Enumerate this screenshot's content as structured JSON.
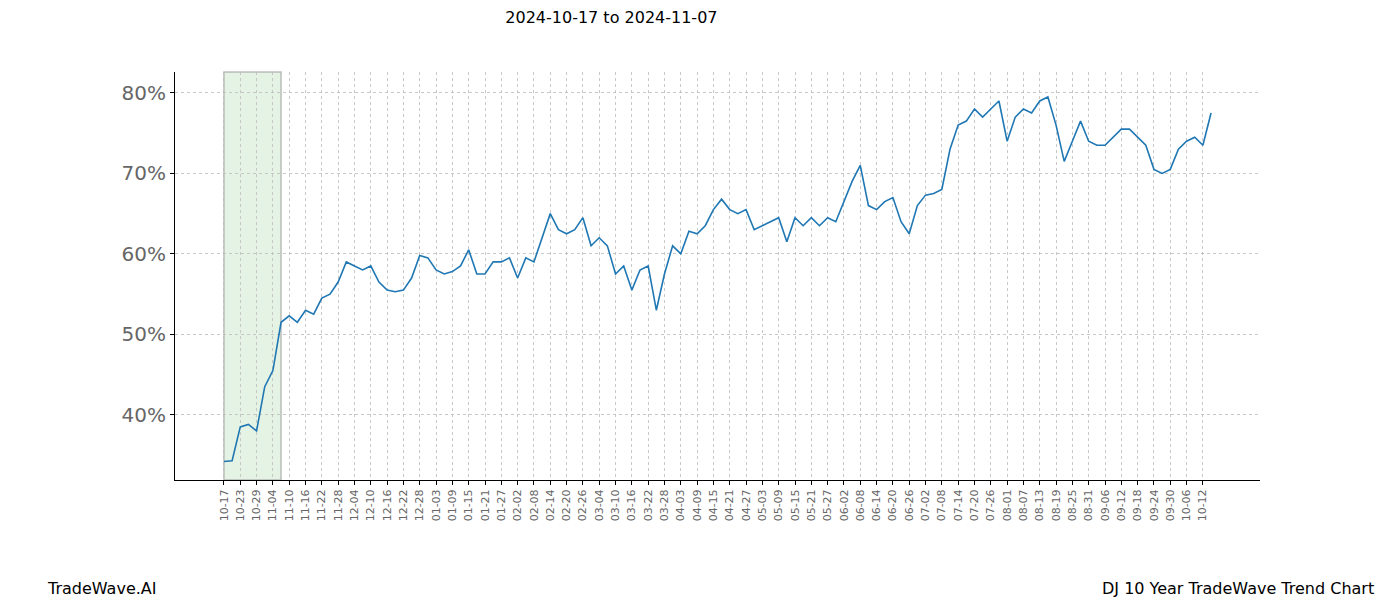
{
  "chart_data": {
    "type": "line",
    "title": "2024-10-17 to 2024-11-07",
    "footer_left": "TradeWave.AI",
    "footer_right": "DJ 10 Year TradeWave Trend Chart",
    "color": "#1f77b4",
    "grid": true,
    "highlight_range": [
      0,
      7
    ],
    "categories": [
      "10-17",
      null,
      "10-23",
      null,
      "10-29",
      null,
      "11-04",
      null,
      "11-10",
      null,
      "11-16",
      null,
      "11-22",
      null,
      "11-28",
      null,
      "12-04",
      null,
      "12-10",
      null,
      "12-16",
      null,
      "12-22",
      null,
      "12-28",
      null,
      "01-03",
      null,
      "01-09",
      null,
      "01-15",
      null,
      "01-21",
      null,
      "01-27",
      null,
      "02-02",
      null,
      "02-08",
      null,
      "02-14",
      null,
      "02-20",
      null,
      "02-26",
      null,
      "03-04",
      null,
      "03-10",
      null,
      "03-16",
      null,
      "03-22",
      null,
      "03-28",
      null,
      "04-03",
      null,
      "04-09",
      null,
      "04-15",
      null,
      "04-21",
      null,
      "04-27",
      null,
      "05-03",
      null,
      "05-09",
      null,
      "05-15",
      null,
      "05-21",
      null,
      "05-27",
      null,
      "06-02",
      null,
      "06-08",
      null,
      "06-14",
      null,
      "06-20",
      null,
      "06-26",
      null,
      "07-02",
      null,
      "07-08",
      null,
      "07-14",
      null,
      "07-20",
      null,
      "07-26",
      null,
      "08-01",
      null,
      "08-07",
      null,
      "08-13",
      null,
      "08-19",
      null,
      "08-25",
      null,
      "08-31",
      null,
      "09-06",
      null,
      "09-12",
      null,
      "09-18",
      null,
      "09-24",
      null,
      "09-30",
      null,
      "10-06",
      null,
      "10-12",
      null
    ],
    "values": [
      34.2,
      34.3,
      38.5,
      38.8,
      38.0,
      43.5,
      45.5,
      51.5,
      52.3,
      51.5,
      53.0,
      52.5,
      54.5,
      55.0,
      56.5,
      59.0,
      58.5,
      58.0,
      58.5,
      56.5,
      55.5,
      55.3,
      55.5,
      57.0,
      59.8,
      59.5,
      58.0,
      57.5,
      57.8,
      58.5,
      60.5,
      57.5,
      57.5,
      59.0,
      59.0,
      59.5,
      57.0,
      59.5,
      59.0,
      62.0,
      65.0,
      63.0,
      62.5,
      63.0,
      64.5,
      61.0,
      62.0,
      61.0,
      57.5,
      58.5,
      55.5,
      58.0,
      58.5,
      53.0,
      57.5,
      61.0,
      60.0,
      62.8,
      62.5,
      63.5,
      65.5,
      66.8,
      65.5,
      65.0,
      65.5,
      63.0,
      63.5,
      64.0,
      64.5,
      61.5,
      64.5,
      63.5,
      64.5,
      63.5,
      64.5,
      64.0,
      66.5,
      69.0,
      71.0,
      66.0,
      65.5,
      66.5,
      67.0,
      64.0,
      62.5,
      66.0,
      67.3,
      67.5,
      68.0,
      73.0,
      76.0,
      76.5,
      78.0,
      77.0,
      78.0,
      79.0,
      74.0,
      77.0,
      78.0,
      77.5,
      79.0,
      79.5,
      76.0,
      71.5,
      74.0,
      76.5,
      74.0,
      73.5,
      73.5,
      74.5,
      75.5,
      75.5,
      74.5,
      73.5,
      70.5,
      70.0,
      70.5,
      73.0,
      74.0,
      74.5,
      73.5,
      77.5
    ],
    "ylim": [
      31.9,
      82.6
    ],
    "yticks": [
      {
        "value": 40,
        "label": "40%"
      },
      {
        "value": 50,
        "label": "50%"
      },
      {
        "value": 60,
        "label": "60%"
      },
      {
        "value": 70,
        "label": "70%"
      },
      {
        "value": 80,
        "label": "80%"
      }
    ]
  }
}
